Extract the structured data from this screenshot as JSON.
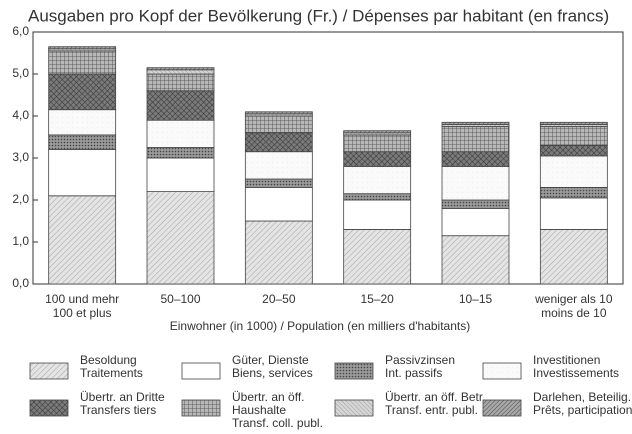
{
  "chart_data": {
    "type": "stacked_bar",
    "title": "Ausgaben pro Kopf der Bevölkerung (Fr.) / Dépenses par habitant (en francs)",
    "x_label": "Einwohner (in 1000) / Population (en milliers d'habitants)",
    "categories": [
      [
        "100 und mehr",
        "100 et plus"
      ],
      [
        "50–100"
      ],
      [
        "20–50"
      ],
      [
        "15–20"
      ],
      [
        "10–15"
      ],
      [
        "weniger als 10",
        "moins de 10"
      ]
    ],
    "ylim": [
      0,
      6
    ],
    "yticks": [
      {
        "value": 0,
        "label": "0,0"
      },
      {
        "value": 1,
        "label": "1,0"
      },
      {
        "value": 2,
        "label": "2,0"
      },
      {
        "value": 3,
        "label": "3,0"
      },
      {
        "value": 4,
        "label": "4,0"
      },
      {
        "value": 5,
        "label": "5,0"
      },
      {
        "value": 6,
        "label": "6,0"
      }
    ],
    "series": [
      {
        "name": [
          "Besoldung",
          "Traitements"
        ],
        "color": "#e4e4e4",
        "values": [
          2.1,
          2.2,
          1.5,
          1.3,
          1.15,
          1.3
        ]
      },
      {
        "name": [
          "Güter, Dienste",
          "Biens, services"
        ],
        "color": "#ffffff",
        "values": [
          1.1,
          0.8,
          0.8,
          0.7,
          0.65,
          0.75
        ]
      },
      {
        "name": [
          "Passivzinsen",
          "Int. passifs"
        ],
        "color": "#9a9a9a",
        "values": [
          0.35,
          0.25,
          0.2,
          0.15,
          0.2,
          0.25
        ]
      },
      {
        "name": [
          "Investitionen",
          "Investissements"
        ],
        "color": "#fafafa",
        "values": [
          0.6,
          0.65,
          0.65,
          0.65,
          0.8,
          0.75
        ]
      },
      {
        "name": [
          "Übertr. an Dritte",
          "Transfers tiers"
        ],
        "color": "#7a7a7a",
        "values": [
          0.85,
          0.7,
          0.45,
          0.35,
          0.35,
          0.25
        ]
      },
      {
        "name": [
          "Übertr. an öff.",
          "Haushalte",
          "Transf. coll. publ."
        ],
        "color": "#b8b8b8",
        "values": [
          0.55,
          0.4,
          0.4,
          0.4,
          0.6,
          0.45
        ]
      },
      {
        "name": [
          "Übertr. an öff. Betr.",
          "Transf. entr. publ."
        ],
        "color": "#d6d6d6",
        "values": [
          0.05,
          0.1,
          0.05,
          0.05,
          0.05,
          0.05
        ]
      },
      {
        "name": [
          "Darlehen, Beteilig.",
          "Prêts, participations"
        ],
        "color": "#a8a8a8",
        "values": [
          0.05,
          0.05,
          0.05,
          0.05,
          0.05,
          0.05
        ]
      }
    ]
  }
}
